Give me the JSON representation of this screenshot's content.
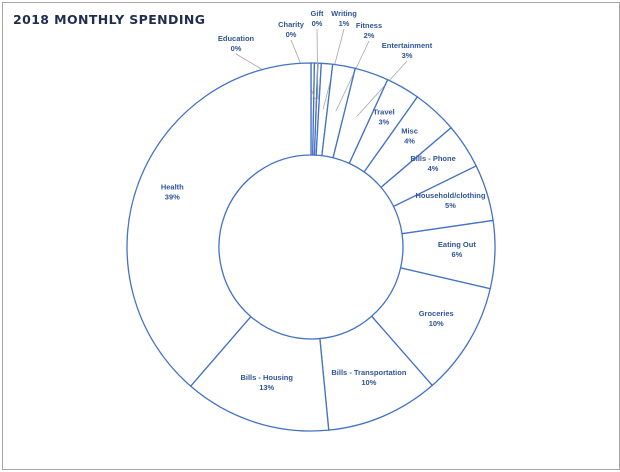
{
  "chart_data": {
    "type": "pie",
    "subtype": "donut",
    "title": "2018 MONTHLY SPENDING",
    "start": "top",
    "direction": "clockwise",
    "colors": {
      "fill": "#ffffff",
      "stroke": "#4472c4",
      "label": "#2f5597",
      "title": "#1f2d4f"
    },
    "slices": [
      {
        "label": "Education",
        "value": 0,
        "display": "0%"
      },
      {
        "label": "Charity",
        "value": 0,
        "display": "0%"
      },
      {
        "label": "Gift",
        "value": 0,
        "display": "0%"
      },
      {
        "label": "Writing",
        "value": 1,
        "display": "1%"
      },
      {
        "label": "Fitness",
        "value": 2,
        "display": "2%"
      },
      {
        "label": "Entertainment",
        "value": 3,
        "display": "3%"
      },
      {
        "label": "Travel",
        "value": 3,
        "display": "3%"
      },
      {
        "label": "Misc",
        "value": 4,
        "display": "4%"
      },
      {
        "label": "Bills - Phone",
        "value": 4,
        "display": "4%"
      },
      {
        "label": "Household/clothing",
        "value": 5,
        "display": "5%"
      },
      {
        "label": "Eating Out",
        "value": 6,
        "display": "6%"
      },
      {
        "label": "Groceries",
        "value": 10,
        "display": "10%"
      },
      {
        "label": "Bills - Transportation",
        "value": 10,
        "display": "10%"
      },
      {
        "label": "Bills - Housing",
        "value": 13,
        "display": "13%"
      },
      {
        "label": "Health",
        "value": 39,
        "display": "39%"
      }
    ]
  }
}
